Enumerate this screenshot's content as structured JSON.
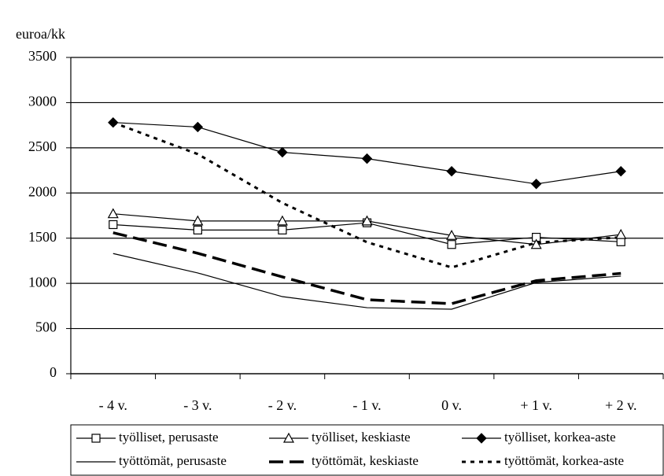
{
  "chart_data": {
    "type": "line",
    "y_axis_label": "euroa/kk",
    "categories": [
      "- 4 v.",
      "- 3 v.",
      "- 2 v.",
      "- 1 v.",
      "0 v.",
      "+ 1 v.",
      "+ 2 v."
    ],
    "ylim": [
      0,
      3500
    ],
    "yticks": [
      0,
      500,
      1000,
      1500,
      2000,
      2500,
      3000,
      3500
    ],
    "grid": true,
    "legend": "bottom",
    "series": [
      {
        "name": "työlliset, perusaste",
        "color": "#000000",
        "marker": "square",
        "line_style": "solid",
        "line_width": 1.2,
        "values": [
          1650,
          1590,
          1590,
          1670,
          1430,
          1510,
          1460
        ]
      },
      {
        "name": "työlliset, keskiaste",
        "color": "#000000",
        "marker": "triangle",
        "line_style": "solid",
        "line_width": 1.2,
        "values": [
          1770,
          1690,
          1690,
          1690,
          1530,
          1430,
          1540
        ]
      },
      {
        "name": "työlliset, korkea-aste",
        "color": "#000000",
        "marker": "diamond",
        "line_style": "solid",
        "line_width": 1.2,
        "values": [
          2780,
          2730,
          2450,
          2380,
          2240,
          2100,
          2240
        ]
      },
      {
        "name": "työttömät, perusaste",
        "color": "#000000",
        "marker": "none",
        "line_style": "solid",
        "line_width": 1.2,
        "values": [
          1330,
          1115,
          853,
          731,
          714,
          1010,
          1080
        ]
      },
      {
        "name": "työttömät, keskiaste",
        "color": "#000000",
        "marker": "none",
        "line_style": "dashed",
        "line_width": 3.5,
        "values": [
          1560,
          1333,
          1071,
          819,
          775,
          1030,
          1110
        ]
      },
      {
        "name": "työttömät, korkea-aste",
        "color": "#000000",
        "marker": "none",
        "line_style": "dotted",
        "line_width": 3,
        "values": [
          2780,
          2430,
          1890,
          1455,
          1176,
          1450,
          1510
        ]
      }
    ]
  }
}
